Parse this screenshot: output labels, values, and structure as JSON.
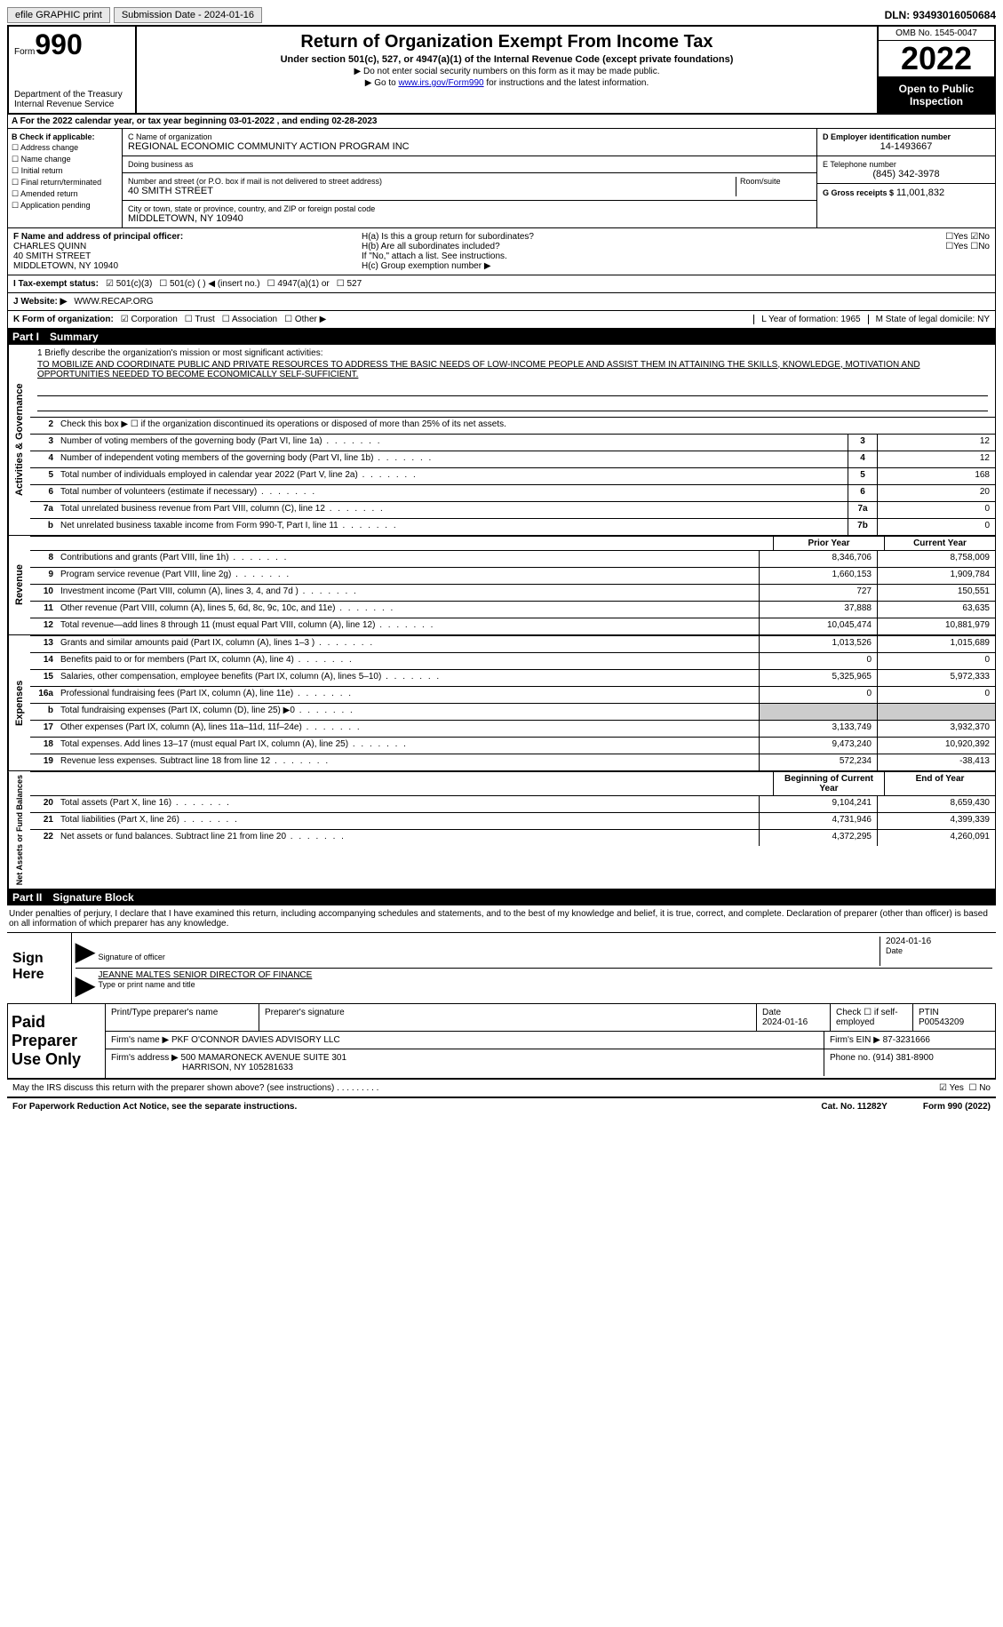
{
  "top": {
    "efile": "efile GRAPHIC print",
    "submission": "Submission Date - 2024-01-16",
    "dln": "DLN: 93493016050684"
  },
  "header": {
    "form_word": "Form",
    "form_num": "990",
    "title": "Return of Organization Exempt From Income Tax",
    "subtitle": "Under section 501(c), 527, or 4947(a)(1) of the Internal Revenue Code (except private foundations)",
    "note1": "▶ Do not enter social security numbers on this form as it may be made public.",
    "note2_pre": "▶ Go to ",
    "note2_link": "www.irs.gov/Form990",
    "note2_post": " for instructions and the latest information.",
    "dept": "Department of the Treasury\nInternal Revenue Service",
    "omb": "OMB No. 1545-0047",
    "year": "2022",
    "inspect": "Open to Public Inspection"
  },
  "row_a": "A For the 2022 calendar year, or tax year beginning 03-01-2022   , and ending 02-28-2023",
  "col_b": {
    "label": "B Check if applicable:",
    "items": [
      "Address change",
      "Name change",
      "Initial return",
      "Final return/terminated",
      "Amended return",
      "Application pending"
    ]
  },
  "col_c": {
    "name_label": "C Name of organization",
    "name": "REGIONAL ECONOMIC COMMUNITY ACTION PROGRAM INC",
    "dba_label": "Doing business as",
    "addr_label": "Number and street (or P.O. box if mail is not delivered to street address)",
    "room_label": "Room/suite",
    "addr": "40 SMITH STREET",
    "city_label": "City or town, state or province, country, and ZIP or foreign postal code",
    "city": "MIDDLETOWN, NY  10940"
  },
  "col_d": {
    "ein_label": "D Employer identification number",
    "ein": "14-1493667",
    "phone_label": "E Telephone number",
    "phone": "(845) 342-3978",
    "gross_label": "G Gross receipts $",
    "gross": "11,001,832"
  },
  "officer": {
    "label": "F Name and address of principal officer:",
    "name": "CHARLES QUINN",
    "addr1": "40 SMITH STREET",
    "addr2": "MIDDLETOWN, NY  10940"
  },
  "group": {
    "ha": "H(a)  Is this a group return for subordinates?",
    "hb": "H(b)  Are all subordinates included?",
    "hb_note": "If \"No,\" attach a list. See instructions.",
    "hc": "H(c)  Group exemption number ▶"
  },
  "tax_status": {
    "label": "I   Tax-exempt status:",
    "opts": [
      "501(c)(3)",
      "501(c) (  ) ◀ (insert no.)",
      "4947(a)(1) or",
      "527"
    ]
  },
  "website": {
    "label": "J   Website: ▶",
    "val": "WWW.RECAP.ORG"
  },
  "k_row": {
    "label": "K Form of organization:",
    "opts": [
      "Corporation",
      "Trust",
      "Association",
      "Other ▶"
    ],
    "l": "L Year of formation: 1965",
    "m": "M State of legal domicile: NY"
  },
  "part1": {
    "num": "Part I",
    "title": "Summary"
  },
  "mission": {
    "label": "1   Briefly describe the organization's mission or most significant activities:",
    "text": "TO MOBILIZE AND COORDINATE PUBLIC AND PRIVATE RESOURCES TO ADDRESS THE BASIC NEEDS OF LOW-INCOME PEOPLE AND ASSIST THEM IN ATTAINING THE SKILLS, KNOWLEDGE, MOTIVATION AND OPPORTUNITIES NEEDED TO BECOME ECONOMICALLY SELF-SUFFICIENT."
  },
  "line2": "Check this box ▶ ☐ if the organization discontinued its operations or disposed of more than 25% of its net assets.",
  "activities_lines": [
    {
      "n": "3",
      "t": "Number of voting members of the governing body (Part VI, line 1a)",
      "box": "3",
      "v": "12"
    },
    {
      "n": "4",
      "t": "Number of independent voting members of the governing body (Part VI, line 1b)",
      "box": "4",
      "v": "12"
    },
    {
      "n": "5",
      "t": "Total number of individuals employed in calendar year 2022 (Part V, line 2a)",
      "box": "5",
      "v": "168"
    },
    {
      "n": "6",
      "t": "Total number of volunteers (estimate if necessary)",
      "box": "6",
      "v": "20"
    },
    {
      "n": "7a",
      "t": "Total unrelated business revenue from Part VIII, column (C), line 12",
      "box": "7a",
      "v": "0"
    },
    {
      "n": "b",
      "t": "Net unrelated business taxable income from Form 990-T, Part I, line 11",
      "box": "7b",
      "v": "0"
    }
  ],
  "col_headers": {
    "prior": "Prior Year",
    "current": "Current Year",
    "boy": "Beginning of Current Year",
    "eoy": "End of Year"
  },
  "revenue": [
    {
      "n": "8",
      "t": "Contributions and grants (Part VIII, line 1h)",
      "p": "8,346,706",
      "c": "8,758,009"
    },
    {
      "n": "9",
      "t": "Program service revenue (Part VIII, line 2g)",
      "p": "1,660,153",
      "c": "1,909,784"
    },
    {
      "n": "10",
      "t": "Investment income (Part VIII, column (A), lines 3, 4, and 7d )",
      "p": "727",
      "c": "150,551"
    },
    {
      "n": "11",
      "t": "Other revenue (Part VIII, column (A), lines 5, 6d, 8c, 9c, 10c, and 11e)",
      "p": "37,888",
      "c": "63,635"
    },
    {
      "n": "12",
      "t": "Total revenue—add lines 8 through 11 (must equal Part VIII, column (A), line 12)",
      "p": "10,045,474",
      "c": "10,881,979"
    }
  ],
  "expenses": [
    {
      "n": "13",
      "t": "Grants and similar amounts paid (Part IX, column (A), lines 1–3 )",
      "p": "1,013,526",
      "c": "1,015,689"
    },
    {
      "n": "14",
      "t": "Benefits paid to or for members (Part IX, column (A), line 4)",
      "p": "0",
      "c": "0"
    },
    {
      "n": "15",
      "t": "Salaries, other compensation, employee benefits (Part IX, column (A), lines 5–10)",
      "p": "5,325,965",
      "c": "5,972,333"
    },
    {
      "n": "16a",
      "t": "Professional fundraising fees (Part IX, column (A), line 11e)",
      "p": "0",
      "c": "0"
    },
    {
      "n": "b",
      "t": "Total fundraising expenses (Part IX, column (D), line 25) ▶0",
      "p": "",
      "c": "",
      "shaded": true
    },
    {
      "n": "17",
      "t": "Other expenses (Part IX, column (A), lines 11a–11d, 11f–24e)",
      "p": "3,133,749",
      "c": "3,932,370"
    },
    {
      "n": "18",
      "t": "Total expenses. Add lines 13–17 (must equal Part IX, column (A), line 25)",
      "p": "9,473,240",
      "c": "10,920,392"
    },
    {
      "n": "19",
      "t": "Revenue less expenses. Subtract line 18 from line 12",
      "p": "572,234",
      "c": "-38,413"
    }
  ],
  "netassets": [
    {
      "n": "20",
      "t": "Total assets (Part X, line 16)",
      "p": "9,104,241",
      "c": "8,659,430"
    },
    {
      "n": "21",
      "t": "Total liabilities (Part X, line 26)",
      "p": "4,731,946",
      "c": "4,399,339"
    },
    {
      "n": "22",
      "t": "Net assets or fund balances. Subtract line 21 from line 20",
      "p": "4,372,295",
      "c": "4,260,091"
    }
  ],
  "section_labels": {
    "activities": "Activities & Governance",
    "revenue": "Revenue",
    "expenses": "Expenses",
    "netassets": "Net Assets or Fund Balances"
  },
  "part2": {
    "num": "Part II",
    "title": "Signature Block"
  },
  "penalties": "Under penalties of perjury, I declare that I have examined this return, including accompanying schedules and statements, and to the best of my knowledge and belief, it is true, correct, and complete. Declaration of preparer (other than officer) is based on all information of which preparer has any knowledge.",
  "sign": {
    "label": "Sign Here",
    "sig_label": "Signature of officer",
    "date": "2024-01-16",
    "date_label": "Date",
    "name": "JEANNE MALTES SENIOR DIRECTOR OF FINANCE",
    "name_label": "Type or print name and title"
  },
  "preparer": {
    "label": "Paid Preparer Use Only",
    "h1": "Print/Type preparer's name",
    "h2": "Preparer's signature",
    "h3_label": "Date",
    "h3": "2024-01-16",
    "h4": "Check ☐ if self-employed",
    "h5_label": "PTIN",
    "h5": "P00543209",
    "firm_name_label": "Firm's name    ▶",
    "firm_name": "PKF O'CONNOR DAVIES ADVISORY LLC",
    "firm_ein_label": "Firm's EIN ▶",
    "firm_ein": "87-3231666",
    "firm_addr_label": "Firm's address ▶",
    "firm_addr": "500 MAMARONECK AVENUE SUITE 301",
    "firm_addr2": "HARRISON, NY  105281633",
    "phone_label": "Phone no.",
    "phone": "(914) 381-8900"
  },
  "may_discuss": "May the IRS discuss this return with the preparer shown above? (see instructions)",
  "footer": {
    "left": "For Paperwork Reduction Act Notice, see the separate instructions.",
    "mid": "Cat. No. 11282Y",
    "right": "Form 990 (2022)"
  }
}
